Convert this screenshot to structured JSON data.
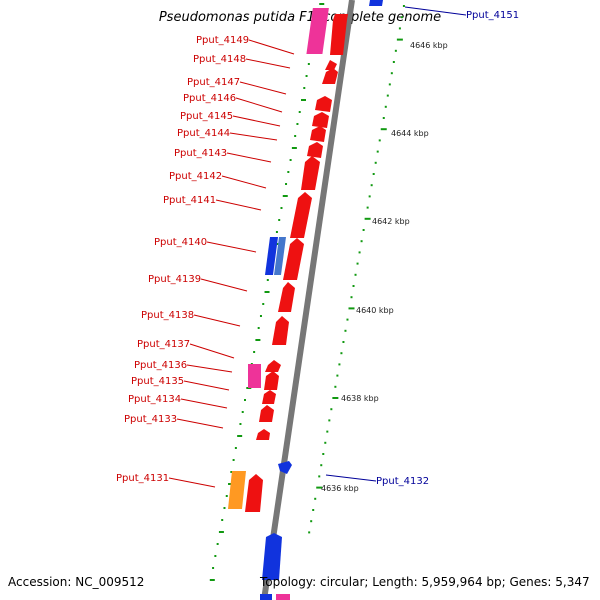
{
  "title": "Pseudomonas putida F1, complete genome",
  "accession": "Accession: NC_009512",
  "topology": "Topology: circular; Length: 5,959,964 bp; Genes: 5,347",
  "colors": {
    "red": "#ee1111",
    "blue": "#1133dd",
    "pink": "#ee3399",
    "orange": "#ff9922",
    "label_left": "#cc0000",
    "label_right": "#000099",
    "tick": "#119911",
    "backbone": "#777777"
  },
  "left_genes": [
    {
      "label": "Pput_4149",
      "color": "red"
    },
    {
      "label": "Pput_4148",
      "color": "red"
    },
    {
      "label": "Pput_4147",
      "color": "red"
    },
    {
      "label": "Pput_4146",
      "color": "red"
    },
    {
      "label": "Pput_4145",
      "color": "red"
    },
    {
      "label": "Pput_4144",
      "color": "red"
    },
    {
      "label": "Pput_4143",
      "color": "red"
    },
    {
      "label": "Pput_4142",
      "color": "red"
    },
    {
      "label": "Pput_4141",
      "color": "red"
    },
    {
      "label": "Pput_4140",
      "color": "red"
    },
    {
      "label": "Pput_4139",
      "color": "red"
    },
    {
      "label": "Pput_4138",
      "color": "red"
    },
    {
      "label": "Pput_4137",
      "color": "red"
    },
    {
      "label": "Pput_4136",
      "color": "red"
    },
    {
      "label": "Pput_4135",
      "color": "red"
    },
    {
      "label": "Pput_4134",
      "color": "red"
    },
    {
      "label": "Pput_4133",
      "color": "red"
    },
    {
      "label": "Pput_4131",
      "color": "red"
    }
  ],
  "right_genes": [
    {
      "label": "Pput_4151",
      "color": "blue"
    },
    {
      "label": "Pput_4132",
      "color": "blue"
    }
  ],
  "kbp_labels": [
    "4646 kbp",
    "4644 kbp",
    "4642 kbp",
    "4640 kbp",
    "4638 kbp",
    "4636 kbp"
  ]
}
